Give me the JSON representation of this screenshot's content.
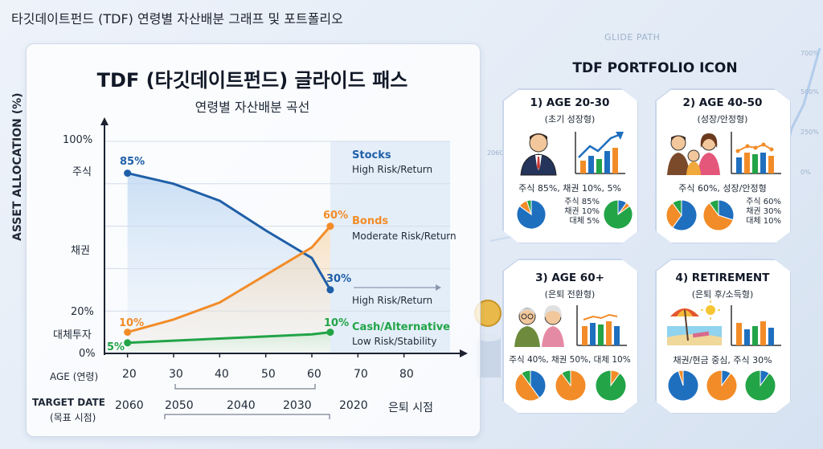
{
  "doc_title": "타깃데이트펀드 (TDF) 연령별 자산배분 그래프 및 포트폴리오",
  "background": {
    "glide_label": "GLIDE PATH",
    "ticks": [
      "700%",
      "500%",
      "250%",
      "0%"
    ],
    "year_label": "2060"
  },
  "chart": {
    "title": "TDF (타깃데이트펀드) 글라이드 패스",
    "subtitle": "연령별 자산배분 곡선",
    "ylabel": "ASSET ALLOCATION (%)",
    "yticks": [
      "100%",
      "주식",
      "채권",
      "20%",
      "대체투자",
      "0%"
    ],
    "age_row_label": "AGE (연령)",
    "ages": [
      "20",
      "30",
      "40",
      "50",
      "60",
      "70",
      "80"
    ],
    "target_row_label": "TARGET DATE",
    "target_row_sub": "(목표 시점)",
    "target_dates": [
      "2060",
      "2050",
      "2040",
      "2030",
      "2020",
      "은퇴 시점"
    ],
    "legend": {
      "stocks_title": "Stocks",
      "stocks_desc": "High Risk/Return",
      "bonds_title": "Bonds",
      "bonds_desc": "Moderate Risk/Return",
      "arrow_desc": "High Risk/Return",
      "cash_title": "Cash/Alternative",
      "cash_desc": "Low Risk/Stability"
    },
    "labels": {
      "stocks_start": "85%",
      "stocks_end": "30%",
      "bonds_start": "10%",
      "bonds_end": "60%",
      "cash_start": "5%",
      "cash_end": "10%"
    }
  },
  "chart_data": {
    "type": "line",
    "xlabel": "AGE (연령)",
    "ylabel": "ASSET ALLOCATION (%)",
    "x": [
      20,
      30,
      40,
      50,
      60,
      64
    ],
    "ylim": [
      0,
      100
    ],
    "series": [
      {
        "name": "Stocks",
        "color": "#1f5fa8",
        "values": [
          85,
          80,
          72,
          58,
          45,
          30
        ]
      },
      {
        "name": "Bonds",
        "color": "#f28c28",
        "values": [
          10,
          16,
          24,
          37,
          50,
          60
        ]
      },
      {
        "name": "Cash/Alternative",
        "color": "#22a447",
        "values": [
          5,
          6,
          7,
          8,
          9,
          10
        ]
      }
    ]
  },
  "portfolio": {
    "title": "TDF PORTFOLIO ICON",
    "colors": {
      "stocks": "#1f6fbf",
      "bonds": "#f28c28",
      "alt": "#22a447"
    },
    "cards": [
      {
        "title": "1) AGE 20-30",
        "subtitle": "(초기 성장형)",
        "alloc": "주식 85%, 채권 10%, 5%",
        "detail": [
          "주식 85%",
          "채권 10%",
          "대체 5%"
        ],
        "icon": "businessman-icon"
      },
      {
        "title": "2) AGE 40-50",
        "subtitle": "(성장/안정형)",
        "alloc": "주식 60%, 성장/안정형",
        "detail": [
          "주식 60%",
          "채권 30%",
          "대체 10%"
        ],
        "icon": "family-icon"
      },
      {
        "title": "3) AGE 60+",
        "subtitle": "(은퇴 전환형)",
        "alloc": "주식 40%, 채권 50%, 대체 10%",
        "detail": [],
        "icon": "elderly-couple-icon"
      },
      {
        "title": "4) RETIREMENT",
        "subtitle": "(은퇴 후/소득형)",
        "alloc": "채권/현금 중심, 주식 30%",
        "detail": [],
        "icon": "beach-umbrella-icon"
      }
    ]
  }
}
